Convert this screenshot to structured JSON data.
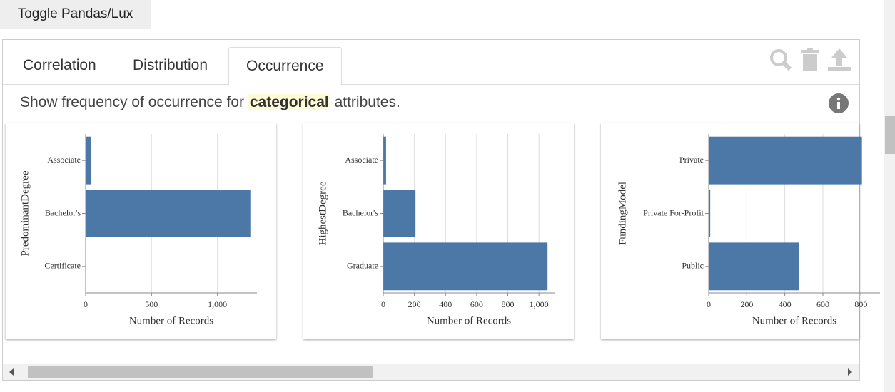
{
  "toggle_button": "Toggle Pandas/Lux",
  "tabs": [
    "Correlation",
    "Distribution",
    "Occurrence"
  ],
  "active_tab": "Occurrence",
  "description": {
    "before": "Show frequency of occurrence for",
    "highlight": "categorical",
    "after": "attributes."
  },
  "chart_data": [
    {
      "type": "bar",
      "orientation": "horizontal",
      "ylabel": "PredominantDegree",
      "xlabel": "Number of Records",
      "categories": [
        "Associate",
        "Bachelor's",
        "Certificate"
      ],
      "values": [
        38,
        1250,
        0
      ],
      "color": "#4c78a8",
      "xlim": [
        0,
        1300
      ],
      "xticks": [
        0,
        500,
        {
          "value": 1000,
          "label": "1,000"
        }
      ],
      "grid": true
    },
    {
      "type": "bar",
      "orientation": "horizontal",
      "ylabel": "HighestDegree",
      "xlabel": "Number of Records",
      "categories": [
        "Associate",
        "Bachelor's",
        "Graduate"
      ],
      "values": [
        18,
        207,
        1055
      ],
      "color": "#4c78a8",
      "xlim": [
        0,
        1100
      ],
      "xticks": [
        0,
        200,
        400,
        600,
        800,
        {
          "value": 1000,
          "label": "1,000"
        }
      ],
      "grid": true
    },
    {
      "type": "bar",
      "orientation": "horizontal",
      "ylabel": "FundingModel",
      "xlabel": "Number of Records",
      "categories": [
        "Private",
        "Private For-Profit",
        "Public"
      ],
      "values": [
        805,
        8,
        475
      ],
      "color": "#4c78a8",
      "xlim": [
        0,
        900
      ],
      "xticks": [
        0,
        200,
        400,
        600,
        800
      ],
      "grid": true
    }
  ]
}
